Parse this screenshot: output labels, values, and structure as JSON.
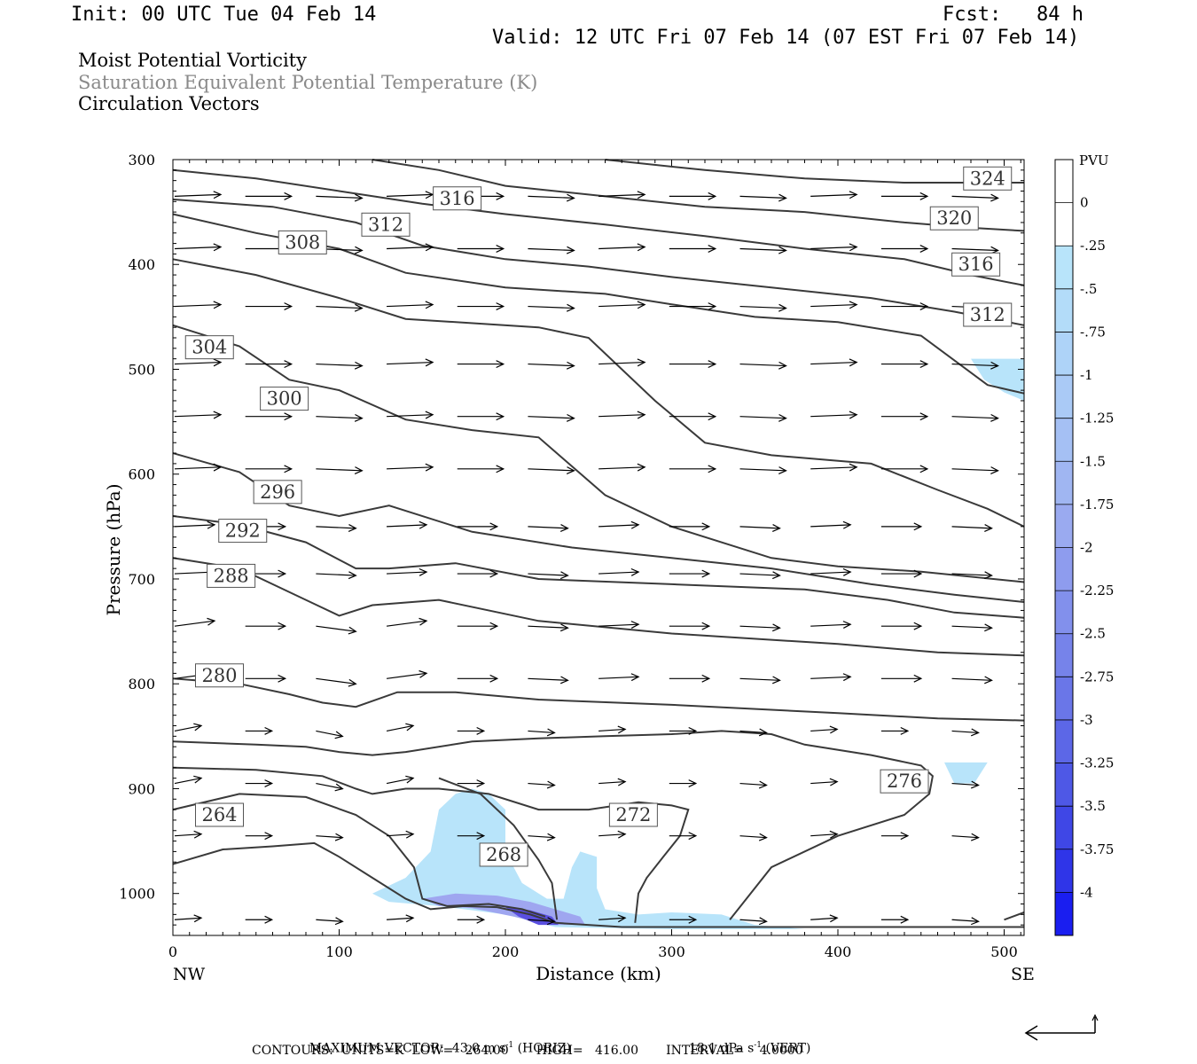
{
  "header": {
    "init": "Init: 00 UTC Tue 04 Feb 14",
    "fcst": "Fcst:   84 h",
    "valid": "Valid: 12 UTC Fri 07 Feb 14 (07 EST Fri 07 Feb 14)"
  },
  "titles": {
    "line1": "Moist Potential Vorticity",
    "line2": "Saturation Equivalent Potential Temperature (K)",
    "line3": "Circulation Vectors"
  },
  "colors": {
    "title2": "#8a8a8a",
    "contour": "#3a3a3a",
    "shade_light": "#b8e4fa",
    "shade_mid": "#9fa6f0",
    "shade_deep": "#5a4fe0",
    "vector": "#000000"
  },
  "footer": {
    "max_vector_label": "MAXIMUM VECTOR:",
    "max_vector_horiz": "43.0 m s",
    "horiz_suffix": "(HORIZ)",
    "max_vector_vert": "18.1 dPa s",
    "vert_suffix": "(VERT)",
    "exp": "-1",
    "contours": "CONTOURS:  UNITS=K  LOW=   264.00       HIGH=   416.00       INTERVAL=    4.0000"
  },
  "chart_data": {
    "type": "cross-section",
    "xlabel": "Distance (km)",
    "ylabel": "Pressure (hPa)",
    "xlim": [
      0,
      512
    ],
    "ylim": [
      1040,
      300
    ],
    "x_ticks": [
      0,
      100,
      200,
      300,
      400,
      500
    ],
    "y_ticks": [
      300,
      400,
      500,
      600,
      700,
      800,
      900,
      1000
    ],
    "x_end_labels": {
      "left": "NW",
      "right": "SE"
    },
    "colorbar": {
      "title": "PVU",
      "tick_labels": [
        "0",
        "-.25",
        "-.5",
        "-.75",
        "-1",
        "-1.25",
        "-1.5",
        "-1.75",
        "-2",
        "-2.25",
        "-2.5",
        "-2.75",
        "-3",
        "-3.25",
        "-3.5",
        "-3.75",
        "-4"
      ],
      "colors": [
        "#ffffff",
        "#ffffff",
        "#b8e4fa",
        "#b3dcf9",
        "#aed3f8",
        "#aacaf6",
        "#a5c0f4",
        "#a0b6f2",
        "#9aaaf0",
        "#8e9cee",
        "#8290ec",
        "#7683ea",
        "#6a76e8",
        "#5c67e7",
        "#4e58e6",
        "#3f47e6",
        "#2f35e8",
        "#1a1ef0"
      ]
    },
    "contours": [
      {
        "label": "264",
        "label_at": [
          28,
          925
        ],
        "points": [
          [
            0,
            972
          ],
          [
            30,
            958
          ],
          [
            60,
            955
          ],
          [
            85,
            952
          ],
          [
            100,
            965
          ],
          [
            120,
            985
          ],
          [
            140,
            1005
          ],
          [
            155,
            1015
          ],
          [
            175,
            1012
          ],
          [
            195,
            1013
          ],
          [
            215,
            1020
          ],
          [
            230,
            1028
          ],
          [
            270,
            1032
          ],
          [
            330,
            1032
          ],
          [
            420,
            1032
          ],
          [
            512,
            1032
          ]
        ]
      },
      {
        "label": "268",
        "label_at": [
          199,
          963
        ],
        "points": [
          [
            0,
            920
          ],
          [
            40,
            905
          ],
          [
            80,
            908
          ],
          [
            110,
            925
          ],
          [
            130,
            945
          ],
          [
            145,
            975
          ],
          [
            150,
            1005
          ],
          [
            165,
            1012
          ],
          [
            190,
            1010
          ],
          [
            210,
            1015
          ],
          [
            224,
            1022
          ]
        ],
        "extra": [
          [
            [
              160,
              890
            ],
            [
              185,
              905
            ],
            [
              205,
              935
            ],
            [
              220,
              968
            ],
            [
              228,
              990
            ],
            [
              231,
              1025
            ]
          ]
        ]
      },
      {
        "label": "272",
        "label_at": [
          277,
          925
        ],
        "points": [
          [
            0,
            880
          ],
          [
            50,
            882
          ],
          [
            90,
            888
          ],
          [
            110,
            900
          ],
          [
            120,
            905
          ],
          [
            140,
            900
          ],
          [
            160,
            900
          ],
          [
            190,
            905
          ],
          [
            220,
            920
          ],
          [
            250,
            920
          ],
          [
            280,
            913
          ],
          [
            300,
            916
          ],
          [
            310,
            920
          ],
          [
            305,
            945
          ],
          [
            295,
            965
          ],
          [
            285,
            985
          ],
          [
            280,
            1000
          ],
          [
            278,
            1028
          ]
        ]
      },
      {
        "label": "276",
        "label_at": [
          440,
          893
        ],
        "points": [
          [
            0,
            855
          ],
          [
            50,
            858
          ],
          [
            80,
            860
          ],
          [
            100,
            865
          ],
          [
            120,
            868
          ],
          [
            140,
            865
          ],
          [
            180,
            855
          ],
          [
            220,
            852
          ],
          [
            260,
            850
          ],
          [
            300,
            848
          ],
          [
            330,
            845
          ],
          [
            360,
            848
          ],
          [
            380,
            858
          ],
          [
            420,
            868
          ],
          [
            450,
            878
          ],
          [
            457,
            888
          ],
          [
            455,
            905
          ],
          [
            440,
            925
          ],
          [
            400,
            945
          ],
          [
            360,
            975
          ],
          [
            335,
            1025
          ]
        ]
      },
      {
        "label": "280",
        "label_at": [
          28,
          792
        ],
        "points": [
          [
            0,
            795
          ],
          [
            40,
            800
          ],
          [
            70,
            810
          ],
          [
            90,
            818
          ],
          [
            110,
            822
          ],
          [
            135,
            808
          ],
          [
            170,
            808
          ],
          [
            220,
            815
          ],
          [
            300,
            820
          ],
          [
            400,
            828
          ],
          [
            460,
            833
          ],
          [
            512,
            835
          ]
        ],
        "extra": [
          [
            [
              500,
              1025
            ],
            [
              512,
              1018
            ]
          ]
        ]
      },
      {
        "label": "288",
        "label_at": [
          35,
          697
        ],
        "points": [
          [
            0,
            680
          ],
          [
            40,
            690
          ],
          [
            80,
            720
          ],
          [
            100,
            735
          ],
          [
            120,
            725
          ],
          [
            160,
            720
          ],
          [
            220,
            740
          ],
          [
            300,
            752
          ],
          [
            400,
            762
          ],
          [
            460,
            770
          ],
          [
            512,
            773
          ]
        ]
      },
      {
        "label": "292",
        "label_at": [
          42,
          654
        ],
        "points": [
          [
            0,
            640
          ],
          [
            40,
            648
          ],
          [
            80,
            665
          ],
          [
            110,
            690
          ],
          [
            130,
            690
          ],
          [
            170,
            685
          ],
          [
            220,
            700
          ],
          [
            300,
            705
          ],
          [
            380,
            710
          ],
          [
            430,
            720
          ],
          [
            470,
            732
          ],
          [
            512,
            737
          ]
        ]
      },
      {
        "label": "296",
        "label_at": [
          63,
          617
        ],
        "points": [
          [
            0,
            580
          ],
          [
            40,
            598
          ],
          [
            70,
            630
          ],
          [
            100,
            640
          ],
          [
            130,
            630
          ],
          [
            180,
            655
          ],
          [
            240,
            670
          ],
          [
            300,
            680
          ],
          [
            360,
            690
          ],
          [
            420,
            705
          ],
          [
            470,
            715
          ],
          [
            512,
            722
          ]
        ]
      },
      {
        "label": "300",
        "label_at": [
          67,
          528
        ],
        "points": [
          [
            0,
            458
          ],
          [
            40,
            478
          ],
          [
            70,
            510
          ],
          [
            100,
            520
          ],
          [
            140,
            548
          ],
          [
            180,
            558
          ],
          [
            220,
            565
          ],
          [
            260,
            620
          ],
          [
            300,
            650
          ],
          [
            360,
            680
          ],
          [
            400,
            688
          ],
          [
            450,
            693
          ],
          [
            512,
            703
          ]
        ]
      },
      {
        "label": "304",
        "label_at": [
          22,
          479
        ],
        "points": [
          [
            0,
            395
          ],
          [
            50,
            410
          ],
          [
            100,
            432
          ],
          [
            140,
            452
          ],
          [
            220,
            460
          ],
          [
            250,
            470
          ],
          [
            290,
            530
          ],
          [
            320,
            570
          ],
          [
            360,
            582
          ],
          [
            420,
            590
          ],
          [
            460,
            615
          ],
          [
            490,
            633
          ],
          [
            512,
            650
          ]
        ]
      },
      {
        "label": "308",
        "label_at": [
          78,
          379
        ],
        "points": [
          [
            0,
            352
          ],
          [
            50,
            370
          ],
          [
            100,
            385
          ],
          [
            140,
            408
          ],
          [
            200,
            422
          ],
          [
            260,
            428
          ],
          [
            300,
            438
          ],
          [
            350,
            450
          ],
          [
            400,
            455
          ],
          [
            450,
            468
          ],
          [
            490,
            515
          ],
          [
            512,
            523
          ]
        ]
      },
      {
        "label": "312",
        "label_at": [
          128,
          362
        ],
        "points": [
          [
            0,
            338
          ],
          [
            60,
            345
          ],
          [
            110,
            360
          ],
          [
            150,
            382
          ],
          [
            200,
            395
          ],
          [
            250,
            402
          ],
          [
            300,
            412
          ],
          [
            360,
            422
          ],
          [
            420,
            432
          ],
          [
            470,
            445
          ],
          [
            512,
            458
          ]
        ]
      },
      {
        "label": "316",
        "label_at": [
          171,
          337
        ],
        "points": [
          [
            0,
            310
          ],
          [
            50,
            318
          ],
          [
            100,
            330
          ],
          [
            150,
            342
          ],
          [
            200,
            352
          ],
          [
            260,
            362
          ],
          [
            320,
            373
          ],
          [
            380,
            385
          ],
          [
            440,
            395
          ],
          [
            480,
            410
          ],
          [
            512,
            420
          ]
        ]
      },
      {
        "label": "320",
        "label_at": [
          470,
          356
        ],
        "points": [
          [
            120,
            300
          ],
          [
            160,
            310
          ],
          [
            200,
            325
          ],
          [
            260,
            335
          ],
          [
            320,
            345
          ],
          [
            380,
            350
          ],
          [
            440,
            360
          ],
          [
            480,
            365
          ],
          [
            512,
            368
          ]
        ]
      },
      {
        "label": "324",
        "label_at": [
          490,
          318
        ],
        "points": [
          [
            260,
            300
          ],
          [
            320,
            310
          ],
          [
            380,
            318
          ],
          [
            440,
            322
          ],
          [
            512,
            322
          ]
        ]
      },
      {
        "label": "312",
        "label_at": [
          490,
          448
        ],
        "points": []
      },
      {
        "label": "316",
        "label_at": [
          483,
          400
        ],
        "points": []
      }
    ],
    "shading": [
      {
        "level": "light",
        "polygon": [
          [
            120,
            1000
          ],
          [
            140,
            985
          ],
          [
            155,
            960
          ],
          [
            160,
            920
          ],
          [
            170,
            905
          ],
          [
            180,
            900
          ],
          [
            190,
            905
          ],
          [
            200,
            920
          ],
          [
            200,
            960
          ],
          [
            210,
            990
          ],
          [
            225,
            1005
          ],
          [
            235,
            1005
          ],
          [
            240,
            975
          ],
          [
            245,
            960
          ],
          [
            255,
            965
          ],
          [
            255,
            995
          ],
          [
            260,
            1015
          ],
          [
            280,
            1020
          ],
          [
            300,
            1018
          ],
          [
            330,
            1020
          ],
          [
            350,
            1030
          ],
          [
            380,
            1034
          ],
          [
            300,
            1034
          ],
          [
            230,
            1032
          ],
          [
            200,
            1020
          ],
          [
            160,
            1012
          ],
          [
            130,
            1008
          ]
        ]
      },
      {
        "level": "mid",
        "polygon": [
          [
            150,
            1005
          ],
          [
            170,
            1000
          ],
          [
            195,
            1002
          ],
          [
            215,
            1008
          ],
          [
            230,
            1015
          ],
          [
            245,
            1022
          ],
          [
            248,
            1030
          ],
          [
            225,
            1030
          ],
          [
            205,
            1022
          ],
          [
            180,
            1014
          ],
          [
            160,
            1012
          ]
        ]
      },
      {
        "level": "deep",
        "polygon": [
          [
            200,
            1013
          ],
          [
            215,
            1016
          ],
          [
            228,
            1022
          ],
          [
            232,
            1030
          ],
          [
            220,
            1030
          ],
          [
            208,
            1022
          ]
        ]
      },
      {
        "level": "light",
        "polygon": [
          [
            480,
            490
          ],
          [
            512,
            490
          ],
          [
            512,
            530
          ],
          [
            500,
            522
          ],
          [
            488,
            510
          ]
        ]
      },
      {
        "level": "light",
        "polygon": [
          [
            464,
            875
          ],
          [
            490,
            875
          ],
          [
            482,
            895
          ],
          [
            470,
            895
          ]
        ]
      }
    ],
    "vector_grid": {
      "x": [
        0,
        42.5,
        85,
        127.5,
        170,
        212.5,
        255,
        297.5,
        340,
        382.5,
        425,
        467.5
      ],
      "p": [
        335,
        385,
        440,
        495,
        545,
        595,
        650,
        695,
        745,
        795,
        845,
        895,
        945,
        1025
      ]
    }
  }
}
